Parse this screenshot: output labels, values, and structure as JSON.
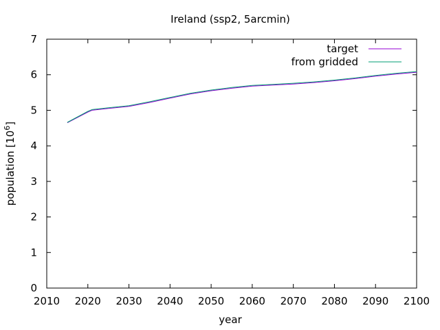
{
  "chart_data": {
    "type": "line",
    "title": "Ireland (ssp2, 5arcmin)",
    "xlabel": "year",
    "ylabel_base": "population [10",
    "ylabel_exp": "6",
    "ylabel_tail": "]",
    "xlim": [
      2010,
      2100
    ],
    "ylim": [
      0,
      7
    ],
    "xticks": [
      "2010",
      "2020",
      "2030",
      "2040",
      "2050",
      "2060",
      "2070",
      "2080",
      "2090",
      "2100"
    ],
    "yticks": [
      "0",
      "1",
      "2",
      "3",
      "4",
      "5",
      "6",
      "7"
    ],
    "grid": false,
    "legend_position": "top-right",
    "series": [
      {
        "name": "target",
        "color": "#9400d3",
        "x": [
          2015,
          2020,
          2021,
          2025,
          2030,
          2035,
          2040,
          2045,
          2050,
          2055,
          2060,
          2065,
          2070,
          2075,
          2080,
          2085,
          2090,
          2095,
          2100
        ],
        "y": [
          4.65,
          4.95,
          5.0,
          5.05,
          5.11,
          5.22,
          5.34,
          5.46,
          5.55,
          5.62,
          5.68,
          5.71,
          5.74,
          5.78,
          5.83,
          5.89,
          5.96,
          6.02,
          6.07
        ]
      },
      {
        "name": "from gridded",
        "color": "#009e73",
        "x": [
          2015,
          2020,
          2021,
          2025,
          2030,
          2035,
          2040,
          2045,
          2050,
          2055,
          2060,
          2065,
          2070,
          2075,
          2080,
          2085,
          2090,
          2095,
          2100
        ],
        "y": [
          4.66,
          4.97,
          5.02,
          5.07,
          5.13,
          5.24,
          5.36,
          5.48,
          5.57,
          5.64,
          5.7,
          5.73,
          5.76,
          5.8,
          5.85,
          5.91,
          5.98,
          6.04,
          6.09
        ]
      }
    ]
  }
}
